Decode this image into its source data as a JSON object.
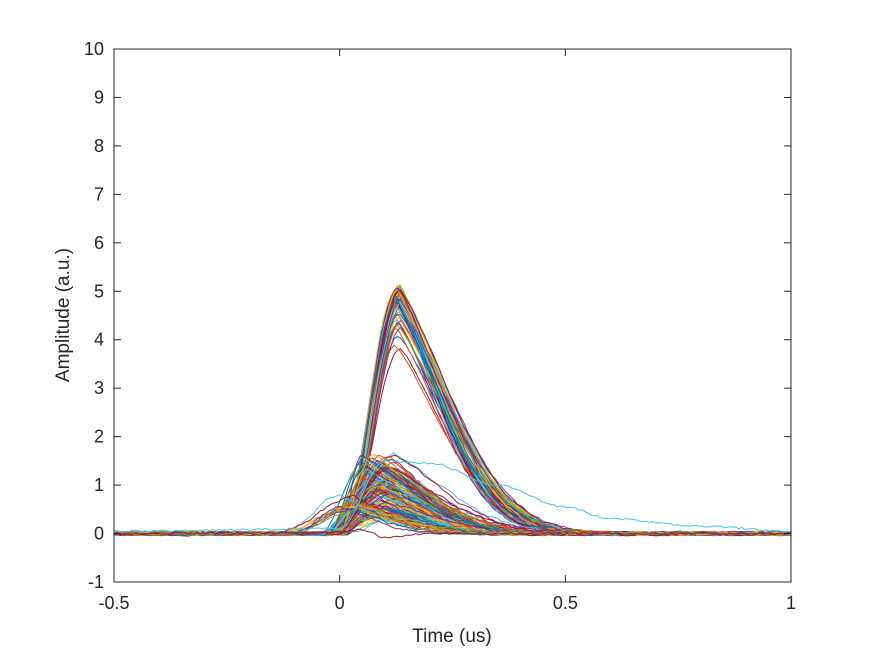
{
  "chart_data": {
    "type": "line",
    "xlabel": "Time (us)",
    "ylabel": "Amplitude (a.u.)",
    "xlim": [
      -0.5,
      1
    ],
    "ylim": [
      -1,
      10
    ],
    "xticks": [
      -0.5,
      0,
      0.5,
      1
    ],
    "xtick_labels": [
      "-0.5",
      "0",
      "0.5",
      "1"
    ],
    "yticks": [
      -1,
      0,
      1,
      2,
      3,
      4,
      5,
      6,
      7,
      8,
      9,
      10
    ],
    "ytick_labels": [
      "-1",
      "0",
      "1",
      "2",
      "3",
      "4",
      "5",
      "6",
      "7",
      "8",
      "9",
      "10"
    ],
    "grid": false,
    "box": true,
    "colors": [
      "#0072BD",
      "#D95319",
      "#EDB120",
      "#7E2F8E",
      "#77AC30",
      "#4DBEEE",
      "#A2142F"
    ],
    "series_groups": [
      {
        "description_value": "high-amplitude pulses",
        "count": 50,
        "baseline": 0,
        "rise_start_x": 0.01,
        "peak_x": 0.13,
        "peak_y_range": [
          3.5,
          5.15
        ],
        "decay_end_x": 0.5
      },
      {
        "description_value": "medium-amplitude pulses",
        "count": 120,
        "baseline": 0,
        "rise_start_x": -0.02,
        "peak_x_range": [
          0.05,
          0.13
        ],
        "peak_y_range": [
          0.3,
          1.65
        ],
        "decay_end_x": 0.4
      },
      {
        "description_value": "early low pulses",
        "count": 10,
        "rise_start_x": -0.15,
        "peak_x_range": [
          0.0,
          0.05
        ],
        "peak_y_range": [
          0.5,
          0.9
        ]
      }
    ],
    "notable_traces": [
      {
        "x": [
          -0.5,
          0.0,
          0.1,
          0.2,
          0.35,
          0.5,
          0.6,
          0.8,
          1.0
        ],
        "y": [
          0.05,
          0.1,
          1.5,
          1.45,
          1.0,
          0.55,
          0.3,
          0.15,
          0.05
        ]
      },
      {
        "x": [
          -0.5,
          0.0,
          0.05,
          0.1,
          0.2,
          0.4,
          1.0
        ],
        "y": [
          0.0,
          0.02,
          0.08,
          -0.08,
          0.0,
          0.0,
          0.0
        ]
      }
    ],
    "noise_amplitude": 0.06
  }
}
